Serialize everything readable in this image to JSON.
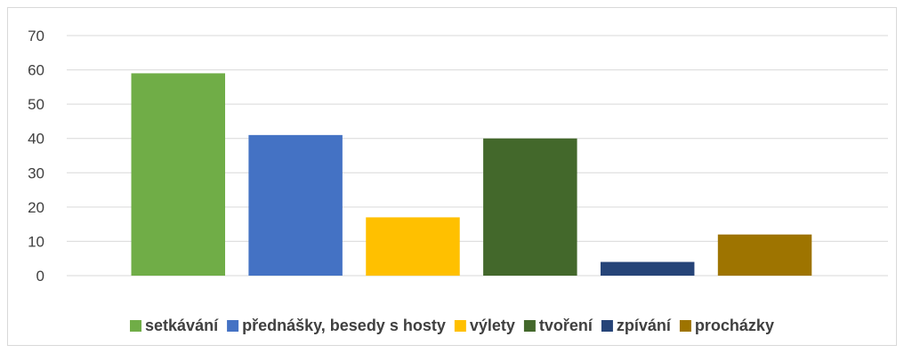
{
  "chart_data": {
    "type": "bar",
    "categories": [
      "setkávání",
      "přednášky, besedy s hosty",
      "výlety",
      "tvoření",
      "zpívání",
      "procházky"
    ],
    "values": [
      59,
      41,
      17,
      40,
      4,
      12
    ],
    "colors": [
      "#70ad47",
      "#4472c4",
      "#ffc000",
      "#43682b",
      "#264478",
      "#9e7400"
    ],
    "ylim": [
      0,
      70
    ],
    "yticks": [
      0,
      10,
      20,
      30,
      40,
      50,
      60,
      70
    ],
    "grid": true,
    "legend": "bottom",
    "title": "",
    "xlabel": "",
    "ylabel": ""
  }
}
